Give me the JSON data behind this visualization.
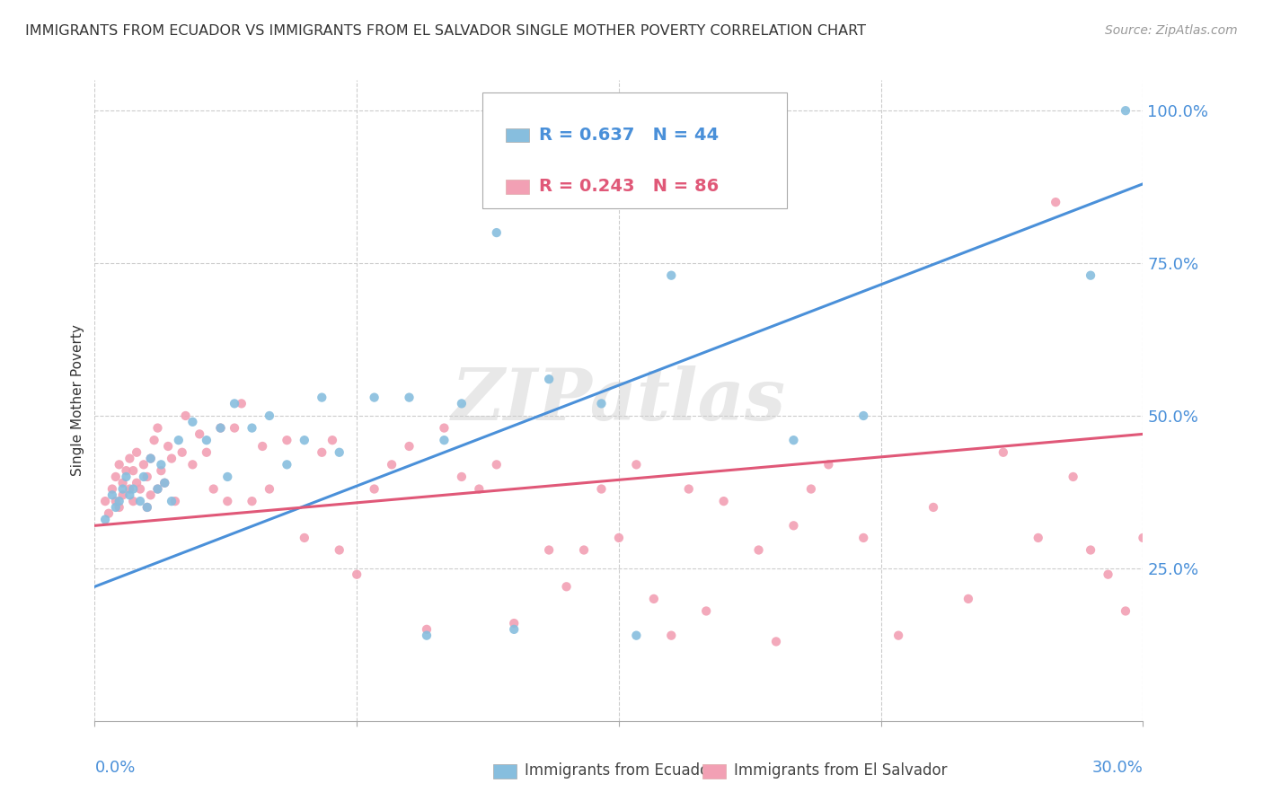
{
  "title": "IMMIGRANTS FROM ECUADOR VS IMMIGRANTS FROM EL SALVADOR SINGLE MOTHER POVERTY CORRELATION CHART",
  "source": "Source: ZipAtlas.com",
  "ylabel": "Single Mother Poverty",
  "x_left_label": "0.0%",
  "x_right_label": "30.0%",
  "y_tick_labels": [
    "25.0%",
    "50.0%",
    "75.0%",
    "100.0%"
  ],
  "y_tick_vals": [
    0.25,
    0.5,
    0.75,
    1.0
  ],
  "x_range": [
    0.0,
    0.3
  ],
  "y_range": [
    0.0,
    1.05
  ],
  "ecuador_R": 0.637,
  "ecuador_N": 44,
  "salvador_R": 0.243,
  "salvador_N": 86,
  "ecuador_color": "#87BEDE",
  "salvador_color": "#F2A0B4",
  "ecuador_line_color": "#4A90D9",
  "salvador_line_color": "#E05878",
  "watermark": "ZIPatlas",
  "legend_R_ec": "R = 0.637",
  "legend_N_ec": "N = 44",
  "legend_R_sal": "R = 0.243",
  "legend_N_sal": "N = 86",
  "legend_label_ec": "Immigrants from Ecuador",
  "legend_label_sal": "Immigrants from El Salvador",
  "ec_line_x0": 0.0,
  "ec_line_y0": 0.22,
  "ec_line_x1": 0.3,
  "ec_line_y1": 0.88,
  "sal_line_x0": 0.0,
  "sal_line_y0": 0.32,
  "sal_line_x1": 0.3,
  "sal_line_y1": 0.47
}
